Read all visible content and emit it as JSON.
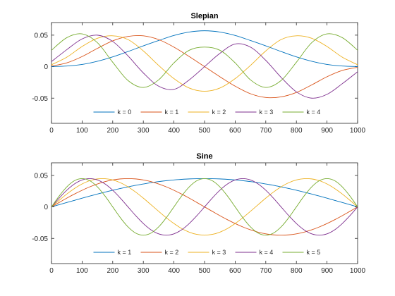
{
  "chart_data": [
    {
      "type": "line",
      "title": "Slepian",
      "xlim": [
        0,
        1000
      ],
      "ylim": [
        -0.09,
        0.07
      ],
      "xticks": [
        0,
        100,
        200,
        300,
        400,
        500,
        600,
        700,
        800,
        900,
        1000
      ],
      "yticks": [
        -0.05,
        0,
        0.05
      ],
      "xtick_labels": [
        "0",
        "100",
        "200",
        "300",
        "400",
        "500",
        "600",
        "700",
        "800",
        "900",
        "1000"
      ],
      "ytick_labels": [
        "-0.05",
        "0",
        "0.05"
      ],
      "grid": false,
      "legend": "bottom-center",
      "x": [
        0,
        50,
        100,
        150,
        200,
        250,
        300,
        350,
        400,
        450,
        500,
        550,
        600,
        650,
        700,
        750,
        800,
        850,
        900,
        950,
        1000
      ],
      "series": [
        {
          "name": "k = 0",
          "color": "#0072BD",
          "values": [
            0.0002,
            0.001,
            0.0035,
            0.0085,
            0.0155,
            0.024,
            0.033,
            0.0415,
            0.0495,
            0.055,
            0.057,
            0.055,
            0.0495,
            0.0415,
            0.033,
            0.024,
            0.0155,
            0.0085,
            0.0035,
            0.001,
            0.0002
          ]
        },
        {
          "name": "k = 1",
          "color": "#D95319",
          "values": [
            0.001,
            0.006,
            0.016,
            0.029,
            0.041,
            0.048,
            0.049,
            0.043,
            0.031,
            0.016,
            0.0,
            -0.016,
            -0.031,
            -0.043,
            -0.049,
            -0.048,
            -0.041,
            -0.029,
            -0.016,
            -0.006,
            -0.001
          ]
        },
        {
          "name": "k = 2",
          "color": "#EDB120",
          "values": [
            0.003,
            0.015,
            0.032,
            0.045,
            0.049,
            0.043,
            0.025,
            0.002,
            -0.019,
            -0.034,
            -0.039,
            -0.034,
            -0.019,
            0.002,
            0.025,
            0.043,
            0.049,
            0.045,
            0.032,
            0.015,
            0.003
          ]
        },
        {
          "name": "k = 3",
          "color": "#7E2F8E",
          "values": [
            0.008,
            0.027,
            0.044,
            0.05,
            0.04,
            0.017,
            -0.01,
            -0.031,
            -0.036,
            -0.021,
            0.0,
            0.021,
            0.036,
            0.031,
            0.01,
            -0.017,
            -0.04,
            -0.05,
            -0.044,
            -0.027,
            -0.008
          ]
        },
        {
          "name": "k = 4",
          "color": "#77AC30",
          "values": [
            0.026,
            0.046,
            0.052,
            0.038,
            0.007,
            -0.022,
            -0.033,
            -0.021,
            0.006,
            0.026,
            0.031,
            0.026,
            0.006,
            -0.021,
            -0.033,
            -0.022,
            0.007,
            0.038,
            0.052,
            0.046,
            0.026
          ]
        }
      ]
    },
    {
      "type": "line",
      "title": "Sine",
      "xlim": [
        0,
        1000
      ],
      "ylim": [
        -0.09,
        0.07
      ],
      "xticks": [
        0,
        100,
        200,
        300,
        400,
        500,
        600,
        700,
        800,
        900,
        1000
      ],
      "yticks": [
        -0.05,
        0,
        0.05
      ],
      "xtick_labels": [
        "0",
        "100",
        "200",
        "300",
        "400",
        "500",
        "600",
        "700",
        "800",
        "900",
        "1000"
      ],
      "ytick_labels": [
        "-0.05",
        "0",
        "0.05"
      ],
      "grid": false,
      "legend": "bottom-center",
      "x": [
        0,
        25,
        50,
        75,
        100,
        125,
        150,
        175,
        200,
        225,
        250,
        275,
        300,
        325,
        350,
        375,
        400,
        425,
        450,
        475,
        500,
        525,
        550,
        575,
        600,
        625,
        650,
        675,
        700,
        725,
        750,
        775,
        800,
        825,
        850,
        875,
        900,
        925,
        950,
        975,
        1000
      ],
      "series": [
        {
          "name": "k = 1",
          "color": "#0072BD",
          "values": [
            0.0,
            0.0035,
            0.007,
            0.0104,
            0.0139,
            0.0172,
            0.0204,
            0.0235,
            0.0264,
            0.0292,
            0.0318,
            0.0343,
            0.0364,
            0.0384,
            0.0401,
            0.0416,
            0.0428,
            0.0437,
            0.0444,
            0.0448,
            0.0449,
            0.0448,
            0.0444,
            0.0437,
            0.0428,
            0.0416,
            0.0401,
            0.0384,
            0.0364,
            0.0343,
            0.0318,
            0.0292,
            0.0264,
            0.0235,
            0.0204,
            0.0172,
            0.0139,
            0.0104,
            0.007,
            0.0035,
            0.0
          ]
        },
        {
          "name": "k = 2",
          "color": "#D95319",
          "values": [
            0.0,
            0.007,
            0.0139,
            0.0204,
            0.0264,
            0.0318,
            0.0364,
            0.0401,
            0.0428,
            0.0444,
            0.0449,
            0.0444,
            0.0428,
            0.0401,
            0.0364,
            0.0318,
            0.0264,
            0.0204,
            0.0139,
            0.007,
            0.0,
            -0.007,
            -0.0139,
            -0.0204,
            -0.0264,
            -0.0318,
            -0.0364,
            -0.0401,
            -0.0428,
            -0.0444,
            -0.0449,
            -0.0444,
            -0.0428,
            -0.0401,
            -0.0364,
            -0.0318,
            -0.0264,
            -0.0204,
            -0.0139,
            -0.007,
            0.0
          ]
        },
        {
          "name": "k = 3",
          "color": "#EDB120",
          "values": [
            0.0,
            0.0104,
            0.0204,
            0.0292,
            0.0364,
            0.0416,
            0.0444,
            0.0448,
            0.0428,
            0.0384,
            0.0318,
            0.0235,
            0.0139,
            0.0035,
            -0.007,
            -0.0172,
            -0.0264,
            -0.0343,
            -0.0401,
            -0.0437,
            -0.0449,
            -0.0437,
            -0.0401,
            -0.0343,
            -0.0264,
            -0.0172,
            -0.007,
            0.0035,
            0.0139,
            0.0235,
            0.0318,
            0.0384,
            0.0428,
            0.0448,
            0.0444,
            0.0416,
            0.0364,
            0.0292,
            0.0204,
            0.0104,
            0.0
          ]
        },
        {
          "name": "k = 4",
          "color": "#7E2F8E",
          "values": [
            0.0,
            0.0139,
            0.0264,
            0.0364,
            0.0428,
            0.0449,
            0.0428,
            0.0364,
            0.0264,
            0.0139,
            0.0,
            -0.0139,
            -0.0264,
            -0.0364,
            -0.0428,
            -0.0449,
            -0.0428,
            -0.0364,
            -0.0264,
            -0.0139,
            0.0,
            0.0139,
            0.0264,
            0.0364,
            0.0428,
            0.0449,
            0.0428,
            0.0364,
            0.0264,
            0.0139,
            0.0,
            -0.0139,
            -0.0264,
            -0.0364,
            -0.0428,
            -0.0449,
            -0.0428,
            -0.0364,
            -0.0264,
            -0.0139,
            0.0
          ]
        },
        {
          "name": "k = 5",
          "color": "#77AC30",
          "values": [
            0.0,
            0.0172,
            0.0318,
            0.0416,
            0.0449,
            0.0416,
            0.0318,
            0.0172,
            0.0,
            -0.0172,
            -0.0318,
            -0.0416,
            -0.0449,
            -0.0416,
            -0.0318,
            -0.0172,
            0.0,
            0.0172,
            0.0318,
            0.0416,
            0.0449,
            0.0416,
            0.0318,
            0.0172,
            0.0,
            -0.0172,
            -0.0318,
            -0.0416,
            -0.0449,
            -0.0416,
            -0.0318,
            -0.0172,
            0.0,
            0.0172,
            0.0318,
            0.0416,
            0.0449,
            0.0416,
            0.0318,
            0.0172,
            0.0
          ]
        }
      ]
    }
  ]
}
